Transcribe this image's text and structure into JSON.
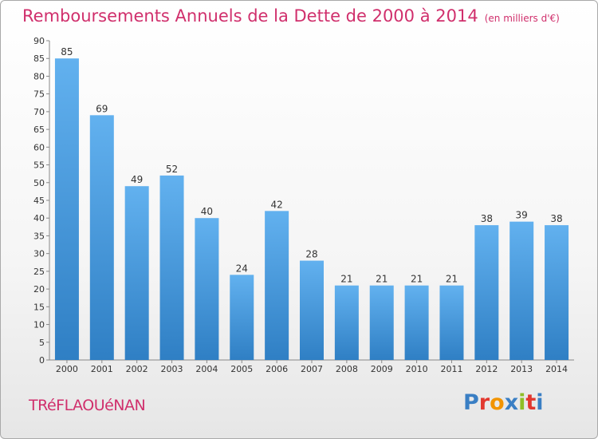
{
  "header": {
    "title": "Remboursements Annuels de la Dette de 2000 à 2014",
    "unit": "(en milliers d'€)"
  },
  "footer": {
    "commune": "TRéFLAOUéNAN",
    "logo": "Proxiti",
    "logo_colors": [
      "#3a7fc4",
      "#e2382f",
      "#f29400",
      "#3a7fc4",
      "#8fbf26",
      "#e2382f",
      "#3a7fc4"
    ]
  },
  "chart_data": {
    "type": "bar",
    "categories": [
      "2000",
      "2001",
      "2002",
      "2003",
      "2004",
      "2005",
      "2006",
      "2007",
      "2008",
      "2009",
      "2010",
      "2011",
      "2012",
      "2013",
      "2014"
    ],
    "values": [
      85,
      69,
      49,
      52,
      40,
      24,
      42,
      28,
      21,
      21,
      21,
      21,
      38,
      39,
      38
    ],
    "ylim": [
      0,
      90
    ],
    "yticks": [
      0,
      5,
      10,
      15,
      20,
      25,
      30,
      35,
      40,
      45,
      50,
      55,
      60,
      65,
      70,
      75,
      80,
      85,
      90
    ],
    "grid": false,
    "bar_color": "#3d8fd6",
    "bar_color_light": "#62b1ef",
    "label_color": "#333333"
  }
}
